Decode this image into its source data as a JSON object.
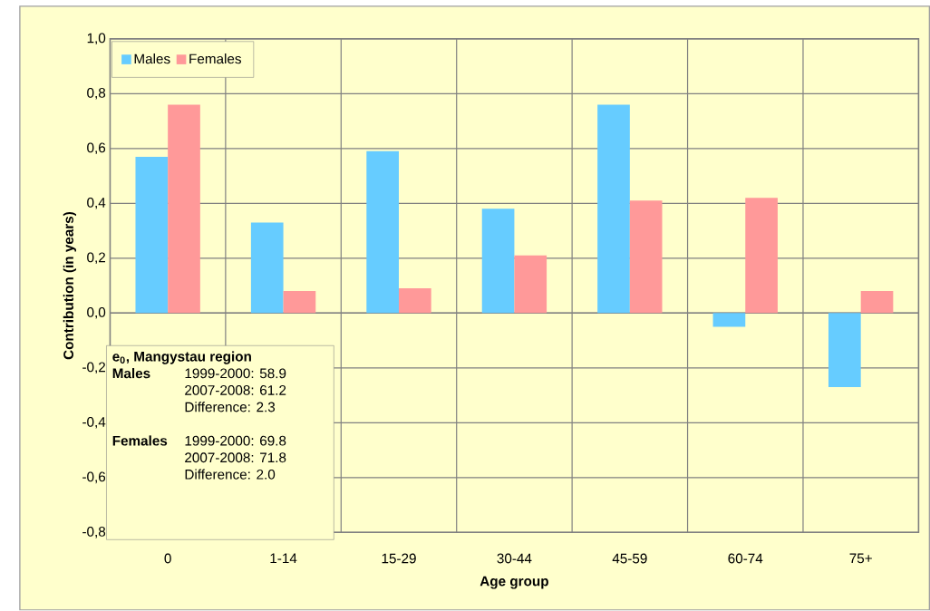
{
  "chart_data": {
    "type": "bar",
    "xlabel": "Age group",
    "ylabel": "Contribution (in years)",
    "categories": [
      "0",
      "1-14",
      "15-29",
      "30-44",
      "45-59",
      "60-74",
      "75+"
    ],
    "series": [
      {
        "name": "Males",
        "color": "#66ccff",
        "values": [
          0.57,
          0.33,
          0.59,
          0.38,
          0.76,
          -0.05,
          -0.27
        ]
      },
      {
        "name": "Females",
        "color": "#ff9999",
        "values": [
          0.76,
          0.08,
          0.09,
          0.21,
          0.41,
          0.42,
          0.08
        ]
      }
    ],
    "ylim": [
      -0.8,
      1.0
    ],
    "yticks": [
      {
        "value": -0.8,
        "label": "-0,8"
      },
      {
        "value": -0.6,
        "label": "-0,6"
      },
      {
        "value": -0.4,
        "label": "-0,4"
      },
      {
        "value": -0.2,
        "label": "-0,2"
      },
      {
        "value": 0.0,
        "label": "0,0"
      },
      {
        "value": 0.2,
        "label": "0,2"
      },
      {
        "value": 0.4,
        "label": "0,4"
      },
      {
        "value": 0.6,
        "label": "0,6"
      },
      {
        "value": 0.8,
        "label": "0,8"
      },
      {
        "value": 1.0,
        "label": "1,0"
      }
    ],
    "grid": true,
    "legend": "top left",
    "annotations": [
      "e$_{0}$, Mangystau region",
      "Males",
      "1999-2000: 58.9",
      "2007-2008: 61.2",
      "Difference: 2.3",
      "Females",
      "1999-2000: 69.8",
      "2007-2008: 71.8",
      "Difference: 2.0"
    ]
  }
}
